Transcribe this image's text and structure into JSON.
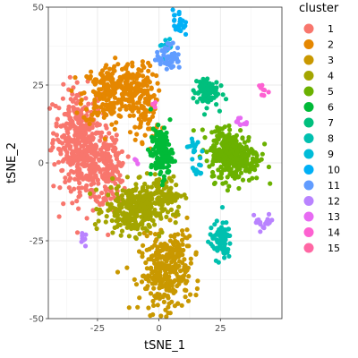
{
  "chart_data": {
    "type": "scatter",
    "xlabel": "tSNE_1",
    "ylabel": "tSNE_2",
    "xlim": [
      -45,
      50
    ],
    "ylim": [
      -50,
      50
    ],
    "x_ticks": [
      -25,
      0,
      25
    ],
    "y_ticks": [
      -50,
      -25,
      0,
      25,
      50
    ],
    "grid": true,
    "legend_title": "cluster",
    "legend_position": "right",
    "series": [
      {
        "name": "1",
        "color": "#F8766D",
        "clusters": [
          {
            "cx": -33,
            "cy": 10,
            "sx": 5,
            "sy": 7,
            "n": 260
          },
          {
            "cx": -27,
            "cy": -2,
            "sx": 6,
            "sy": 6,
            "n": 220
          },
          {
            "cx": -19,
            "cy": -3,
            "sx": 3,
            "sy": 5,
            "n": 80
          }
        ]
      },
      {
        "name": "2",
        "color": "#E58700",
        "clusters": [
          {
            "cx": -21,
            "cy": 22,
            "sx": 5,
            "sy": 5,
            "n": 200
          },
          {
            "cx": -10,
            "cy": 24,
            "sx": 4,
            "sy": 4,
            "n": 140
          },
          {
            "cx": -5,
            "cy": 15,
            "sx": 3,
            "sy": 4,
            "n": 60
          }
        ]
      },
      {
        "name": "3",
        "color": "#C99800",
        "clusters": [
          {
            "cx": 2,
            "cy": -36,
            "sx": 5,
            "sy": 6,
            "n": 260
          },
          {
            "cx": 8,
            "cy": -28,
            "sx": 3,
            "sy": 4,
            "n": 60
          }
        ]
      },
      {
        "name": "4",
        "color": "#A3A500",
        "clusters": [
          {
            "cx": -10,
            "cy": -15,
            "sx": 6,
            "sy": 4,
            "n": 300
          },
          {
            "cx": 2,
            "cy": -10,
            "sx": 4,
            "sy": 3,
            "n": 80
          }
        ]
      },
      {
        "name": "5",
        "color": "#6BB100",
        "clusters": [
          {
            "cx": 31,
            "cy": 2,
            "sx": 5,
            "sy": 4,
            "n": 280
          },
          {
            "cx": 25,
            "cy": 6,
            "sx": 3,
            "sy": 3,
            "n": 60
          }
        ]
      },
      {
        "name": "6",
        "color": "#00BA38",
        "clusters": [
          {
            "cx": 1,
            "cy": 3,
            "sx": 2.2,
            "sy": 4,
            "n": 140
          }
        ]
      },
      {
        "name": "7",
        "color": "#00BF7D",
        "clusters": [
          {
            "cx": 19,
            "cy": 23,
            "sx": 2.5,
            "sy": 2.5,
            "n": 90
          }
        ]
      },
      {
        "name": "8",
        "color": "#00C0AF",
        "clusters": [
          {
            "cx": 25,
            "cy": -25,
            "sx": 2.2,
            "sy": 3,
            "n": 80
          }
        ]
      },
      {
        "name": "9",
        "color": "#00BCD8",
        "clusters": [
          {
            "cx": 14,
            "cy": 5,
            "sx": 1.5,
            "sy": 1.5,
            "n": 14
          },
          {
            "cx": 16,
            "cy": -2,
            "sx": 1.2,
            "sy": 1.5,
            "n": 12
          },
          {
            "cx": 3,
            "cy": 38,
            "sx": 1.2,
            "sy": 2,
            "n": 14
          }
        ]
      },
      {
        "name": "10",
        "color": "#00B0F6",
        "clusters": [
          {
            "cx": 8,
            "cy": 45,
            "sx": 1.2,
            "sy": 2.2,
            "n": 24
          }
        ]
      },
      {
        "name": "11",
        "color": "#619CFF",
        "clusters": [
          {
            "cx": 4,
            "cy": 34,
            "sx": 2.5,
            "sy": 2,
            "n": 50
          }
        ]
      },
      {
        "name": "12",
        "color": "#B983FF",
        "clusters": [
          {
            "cx": 42,
            "cy": -19,
            "sx": 2.5,
            "sy": 1.5,
            "n": 20
          },
          {
            "cx": -30,
            "cy": -23,
            "sx": 1,
            "sy": 1.2,
            "n": 8
          }
        ]
      },
      {
        "name": "13",
        "color": "#E76BF3",
        "clusters": [
          {
            "cx": 33,
            "cy": 13,
            "sx": 1.5,
            "sy": 1,
            "n": 10
          },
          {
            "cx": -9,
            "cy": 1,
            "sx": 1,
            "sy": 1,
            "n": 4
          }
        ]
      },
      {
        "name": "14",
        "color": "#FD61D1",
        "clusters": [
          {
            "cx": 42,
            "cy": 23,
            "sx": 1,
            "sy": 1,
            "n": 8
          },
          {
            "cx": -1,
            "cy": 19,
            "sx": 0.8,
            "sy": 0.8,
            "n": 3
          }
        ]
      },
      {
        "name": "15",
        "color": "#FF67A4",
        "clusters": []
      }
    ]
  }
}
